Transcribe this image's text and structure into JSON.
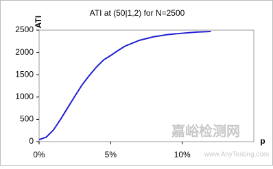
{
  "chart_data": {
    "type": "line",
    "title": "ATI at (50|1,2) for N=2500",
    "ylabel": "ATI",
    "xlabel": "p",
    "x": [
      0,
      0.005,
      0.01,
      0.015,
      0.02,
      0.025,
      0.03,
      0.035,
      0.04,
      0.045,
      0.05,
      0.055,
      0.06,
      0.07,
      0.08,
      0.09,
      0.1,
      0.11,
      0.12
    ],
    "series": [
      {
        "name": "ATI",
        "color": "#1f1fd0",
        "values": [
          45,
          100,
          260,
          500,
          760,
          1020,
          1270,
          1480,
          1670,
          1830,
          1930,
          2040,
          2140,
          2270,
          2350,
          2400,
          2430,
          2455,
          2470
        ]
      }
    ],
    "xlim": [
      0,
      0.15
    ],
    "xticks": [
      {
        "value": 0,
        "label": "0%"
      },
      {
        "value": 0.05,
        "label": "5%"
      },
      {
        "value": 0.1,
        "label": "10%"
      }
    ],
    "ylim": [
      0,
      2500
    ],
    "yticks": [
      0,
      500,
      1000,
      1500,
      2000,
      2500
    ]
  },
  "watermark": {
    "text": "嘉峪检测网",
    "url": "www.AnyTesting.com"
  }
}
